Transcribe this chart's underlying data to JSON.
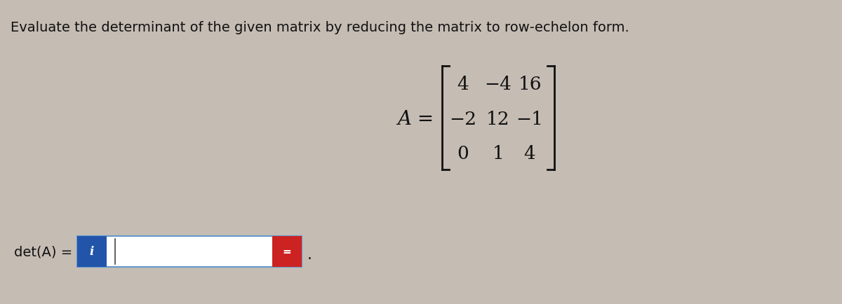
{
  "title": "Evaluate the determinant of the given matrix by reducing the matrix to row-echelon form.",
  "title_fontsize": 14,
  "matrix_label": "A =",
  "matrix_rows": [
    [
      "4",
      "−4",
      "16"
    ],
    [
      "−2",
      "12",
      "−1"
    ],
    [
      "0",
      "1",
      "4"
    ]
  ],
  "det_label": "det(A) =",
  "bg_color": "#c5bcb4",
  "text_color": "#111111",
  "box_outline_color": "#6699cc",
  "blue_box_color": "#2255aa",
  "red_box_color": "#cc2222"
}
